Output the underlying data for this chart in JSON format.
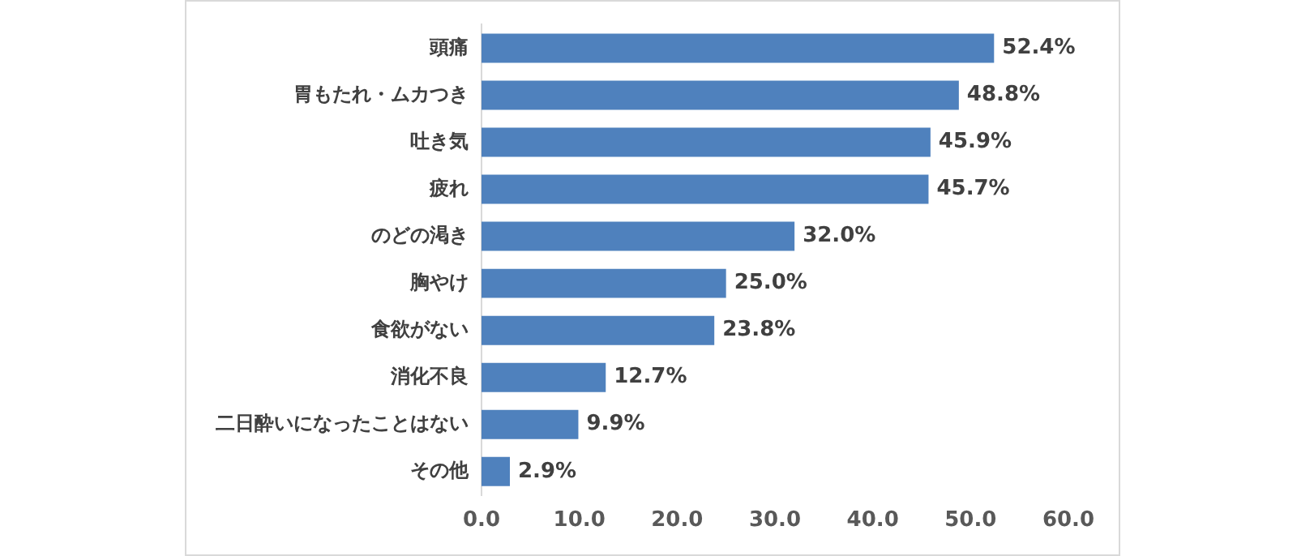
{
  "chart_data": {
    "type": "bar",
    "orientation": "horizontal",
    "categories": [
      "頭痛",
      "胃もたれ・ムカつき",
      "吐き気",
      "疲れ",
      "のどの渇き",
      "胸やけ",
      "食欲がない",
      "消化不良",
      "二日酔いになったことはない",
      "その他"
    ],
    "values": [
      52.4,
      48.8,
      45.9,
      45.7,
      32.0,
      25.0,
      23.8,
      12.7,
      9.9,
      2.9
    ],
    "value_labels": [
      "52.4%",
      "48.8%",
      "45.9%",
      "45.7%",
      "32.0%",
      "25.0%",
      "23.8%",
      "12.7%",
      "9.9%",
      "2.9%"
    ],
    "color": "#4f81bd",
    "xlim": [
      0,
      60
    ],
    "xticks": [
      {
        "value": 0,
        "label": "0.0"
      },
      {
        "value": 10,
        "label": "10.0"
      },
      {
        "value": 20,
        "label": "20.0"
      },
      {
        "value": 30,
        "label": "30.0"
      },
      {
        "value": 40,
        "label": "40.0"
      },
      {
        "value": 50,
        "label": "50.0"
      },
      {
        "value": 60,
        "label": "60.0"
      }
    ],
    "grid": false,
    "legend": false
  }
}
